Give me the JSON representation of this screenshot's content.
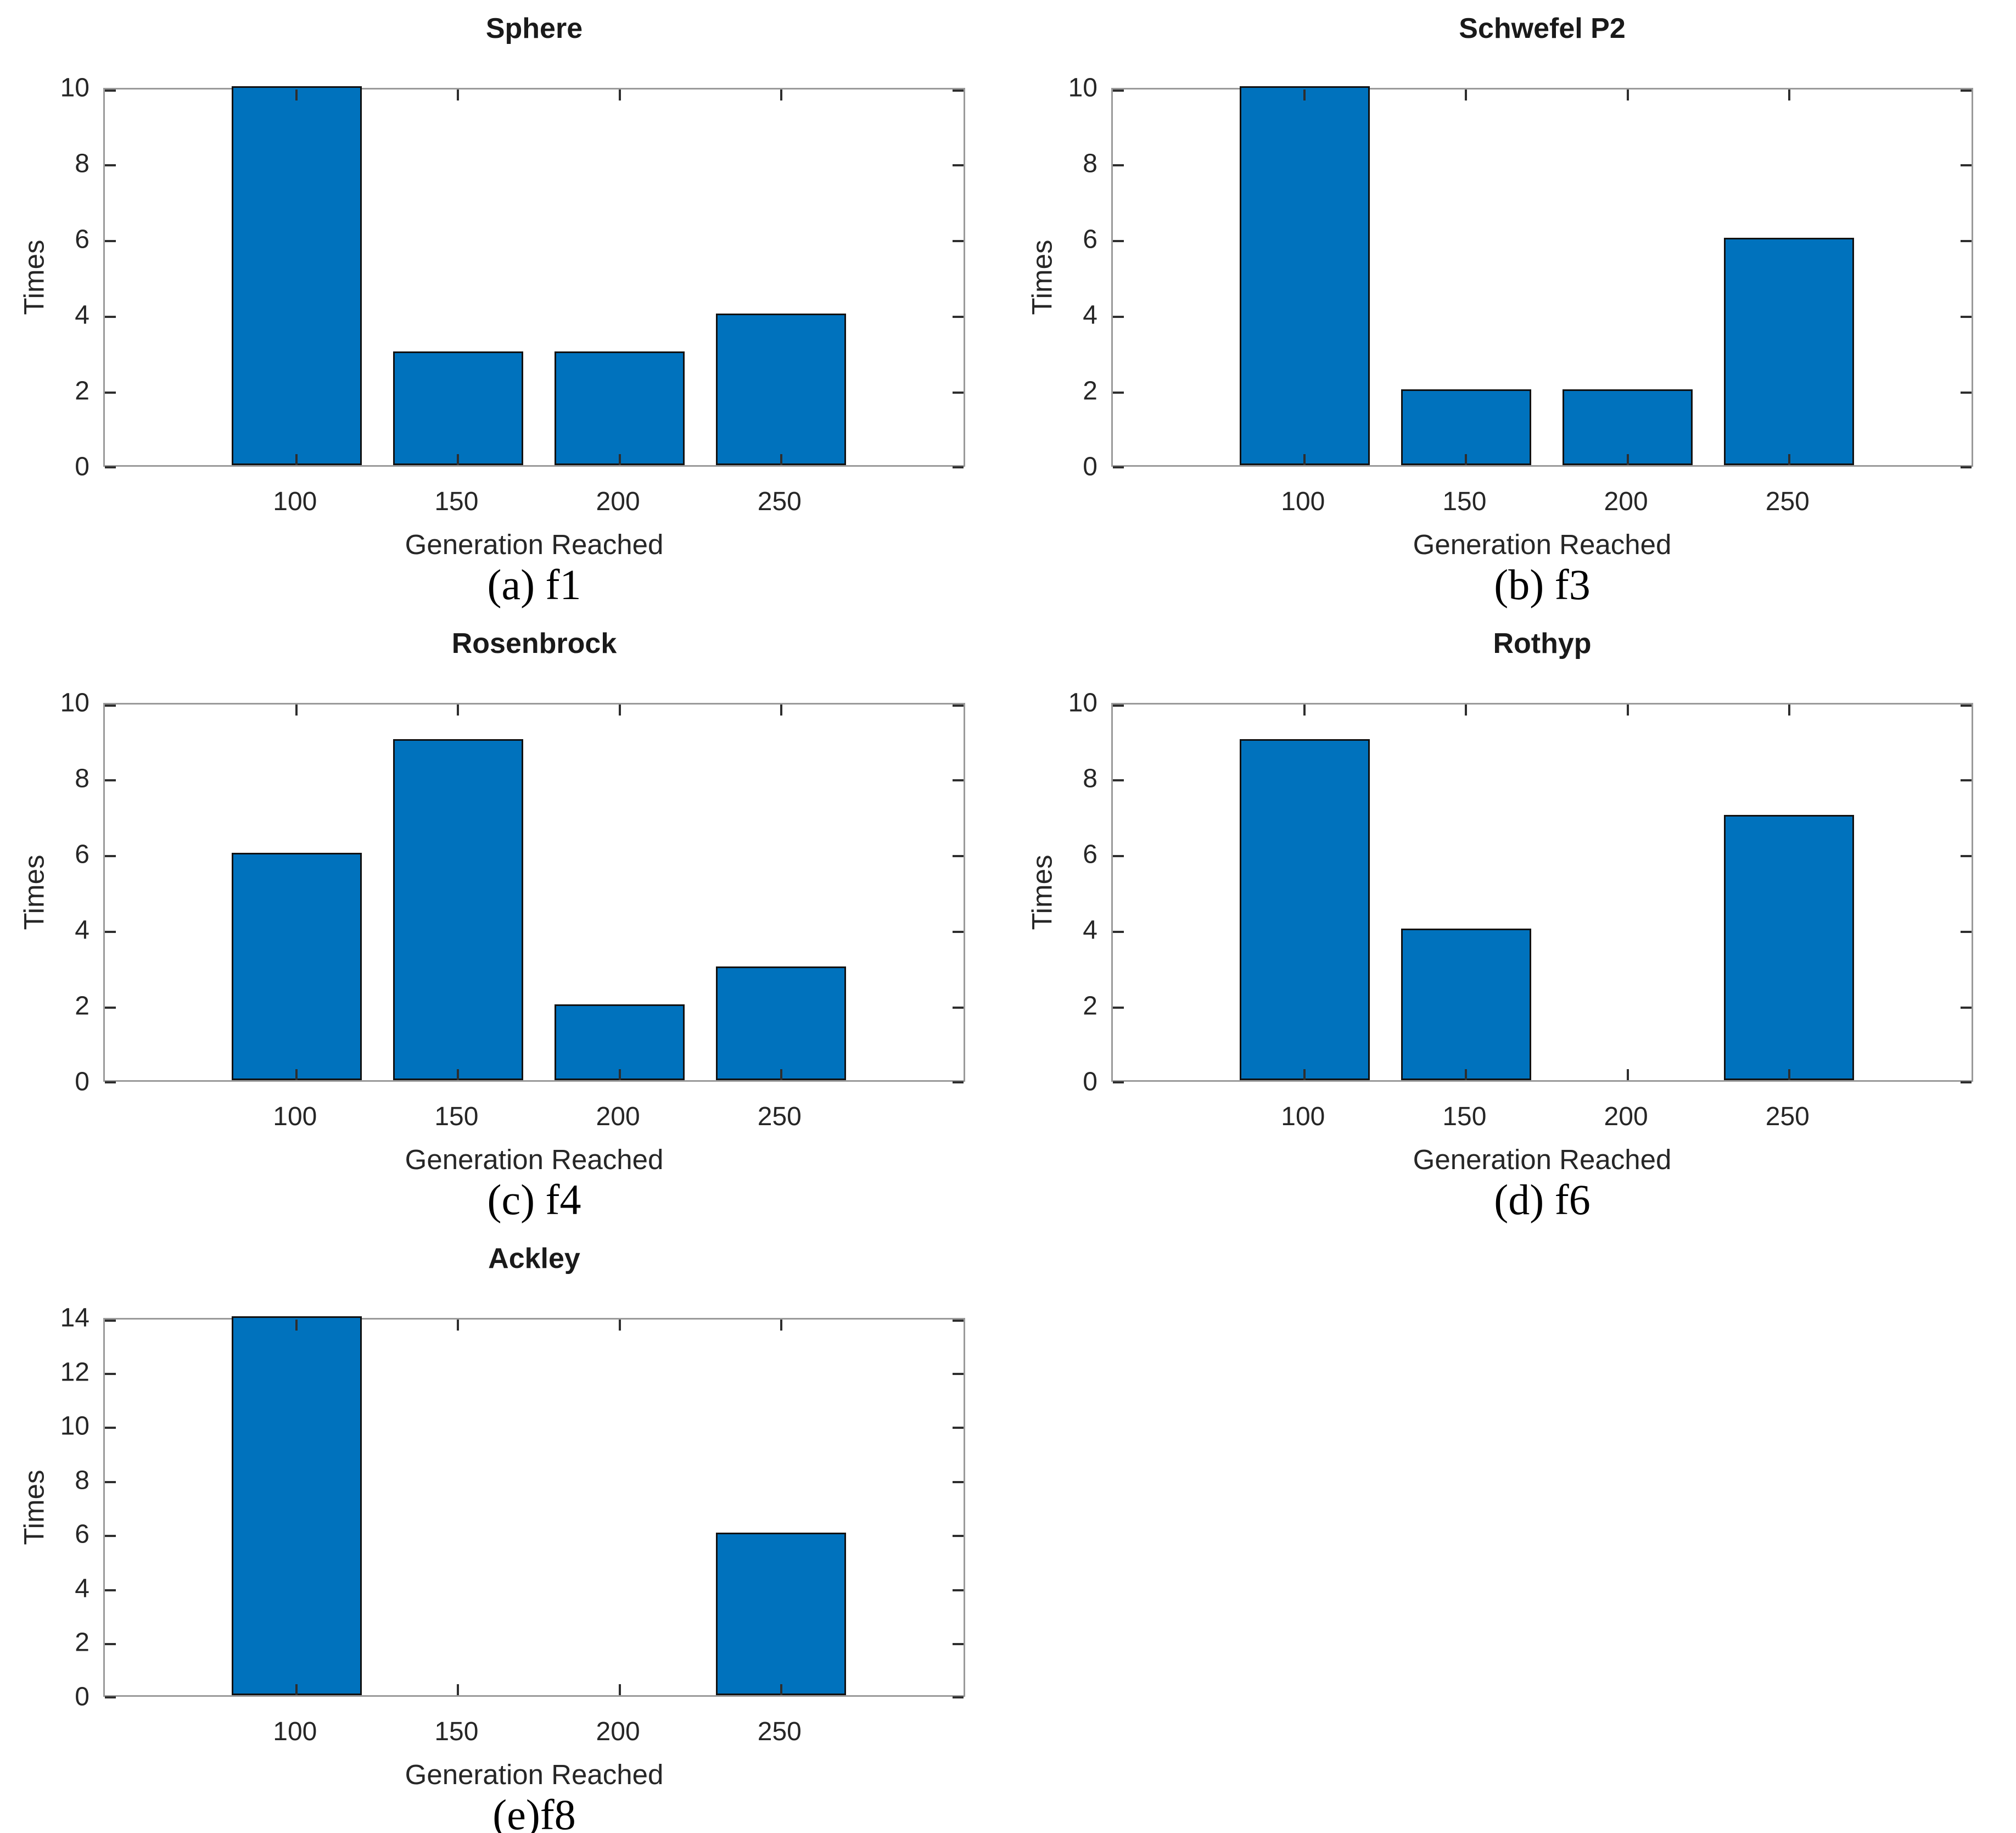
{
  "figure": {
    "background": "#ffffff",
    "bar_color": "#0072BD",
    "bar_edge_color": "#111111",
    "axis_box_color": "#9a9a9a",
    "tick_mark_color": "#2e2e2e",
    "text_color": "#262626",
    "caption_color": "#000000"
  },
  "chart_data": [
    {
      "id": "sphere",
      "type": "bar",
      "title": "Sphere",
      "caption": "(a) f1",
      "xlabel": "Generation Reached",
      "ylabel": "Times",
      "categories": [
        "100",
        "150",
        "200",
        "250"
      ],
      "values": [
        10,
        3,
        3,
        4
      ],
      "yticks": [
        0,
        2,
        4,
        6,
        8,
        10
      ],
      "ylim": [
        0,
        10
      ],
      "grid": false,
      "legend": null
    },
    {
      "id": "schwefel-p2",
      "type": "bar",
      "title": "Schwefel P2",
      "caption": "(b) f3",
      "xlabel": "Generation Reached",
      "ylabel": "Times",
      "categories": [
        "100",
        "150",
        "200",
        "250"
      ],
      "values": [
        10,
        2,
        2,
        6
      ],
      "yticks": [
        0,
        2,
        4,
        6,
        8,
        10
      ],
      "ylim": [
        0,
        10
      ],
      "grid": false,
      "legend": null
    },
    {
      "id": "rosenbrock",
      "type": "bar",
      "title": "Rosenbrock",
      "caption": "(c) f4",
      "xlabel": "Generation Reached",
      "ylabel": "Times",
      "categories": [
        "100",
        "150",
        "200",
        "250"
      ],
      "values": [
        6,
        9,
        2,
        3
      ],
      "yticks": [
        0,
        2,
        4,
        6,
        8,
        10
      ],
      "ylim": [
        0,
        10
      ],
      "grid": false,
      "legend": null
    },
    {
      "id": "rothyp",
      "type": "bar",
      "title": "Rothyp",
      "caption": "(d) f6",
      "xlabel": "Generation Reached",
      "ylabel": "Times",
      "categories": [
        "100",
        "150",
        "200",
        "250"
      ],
      "values": [
        9,
        4,
        0,
        7
      ],
      "yticks": [
        0,
        2,
        4,
        6,
        8,
        10
      ],
      "ylim": [
        0,
        10
      ],
      "grid": false,
      "legend": null
    },
    {
      "id": "ackley",
      "type": "bar",
      "title": "Ackley",
      "caption": "(e)f8",
      "xlabel": "Generation Reached",
      "ylabel": "Times",
      "categories": [
        "100",
        "150",
        "200",
        "250"
      ],
      "values": [
        14,
        0,
        0,
        6
      ],
      "yticks": [
        0,
        2,
        4,
        6,
        8,
        10,
        12,
        14
      ],
      "ylim": [
        0,
        14
      ],
      "grid": false,
      "legend": null
    }
  ]
}
